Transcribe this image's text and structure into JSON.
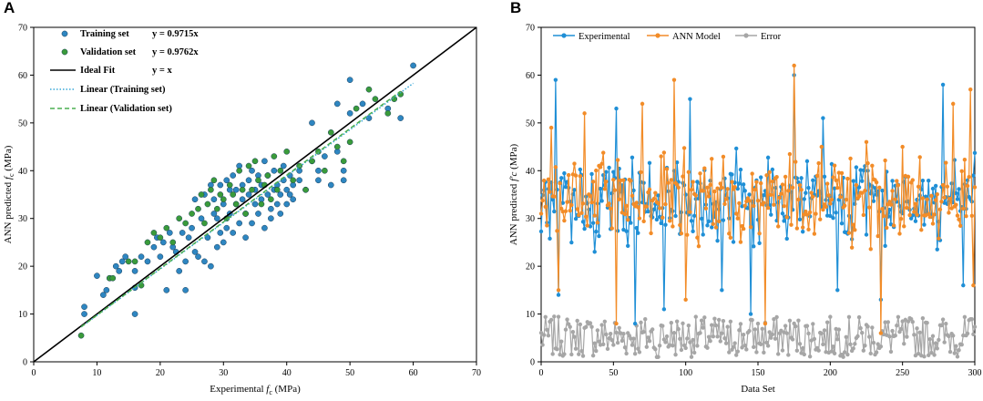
{
  "chart_data": [
    {
      "type": "scatter",
      "panel_label": "A",
      "xlabel_prefix": "Experimental ",
      "xlabel_var": "f",
      "xlabel_sub": "c",
      "xlabel_suffix": " (MPa)",
      "ylabel_prefix": "ANN predicted ",
      "ylabel_var": "f",
      "ylabel_sub": "c",
      "ylabel_suffix": " (MPa)",
      "xlim": [
        0,
        70
      ],
      "ylim": [
        0,
        70
      ],
      "xticks": [
        0,
        10,
        20,
        30,
        40,
        50,
        60,
        70
      ],
      "yticks": [
        0,
        10,
        20,
        30,
        40,
        50,
        60,
        70
      ],
      "legend_position": "top-left",
      "colors": {
        "training": "#2e86c1",
        "validation": "#3a9b3a",
        "ideal": "#000000",
        "train_fit": "#3aa8d8",
        "val_fit": "#4caf50"
      },
      "legend": [
        {
          "label": "Training set",
          "equation": "y = 0.9715x"
        },
        {
          "label": "Validation set",
          "equation": "y = 0.9762x"
        },
        {
          "label": "Ideal Fit",
          "equation": "y = x"
        },
        {
          "label": "Linear (Training set)"
        },
        {
          "label": "Linear (Validation set)"
        }
      ],
      "lines": {
        "ideal": {
          "slope": 1.0,
          "x": [
            0,
            70
          ]
        },
        "training_fit": {
          "slope": 0.9715,
          "x": [
            7.5,
            60
          ]
        },
        "validation_fit": {
          "slope": 0.9762,
          "x": [
            7.5,
            58
          ]
        }
      },
      "series": [
        {
          "name": "Training set",
          "points": [
            [
              8,
              10
            ],
            [
              8,
              11.5
            ],
            [
              10,
              18
            ],
            [
              11,
              14
            ],
            [
              11.5,
              15
            ],
            [
              12,
              17.5
            ],
            [
              13,
              20
            ],
            [
              13.5,
              19
            ],
            [
              14,
              21
            ],
            [
              14.5,
              22
            ],
            [
              16,
              10
            ],
            [
              16,
              15.5
            ],
            [
              16,
              19
            ],
            [
              17,
              22
            ],
            [
              18,
              21
            ],
            [
              19,
              24
            ],
            [
              19.5,
              26
            ],
            [
              20,
              22
            ],
            [
              20.5,
              25
            ],
            [
              21,
              15
            ],
            [
              21.5,
              27
            ],
            [
              22,
              24
            ],
            [
              22.5,
              23
            ],
            [
              23,
              19
            ],
            [
              23.5,
              27
            ],
            [
              24,
              15
            ],
            [
              24,
              21
            ],
            [
              24.5,
              26
            ],
            [
              25,
              28
            ],
            [
              25.5,
              23
            ],
            [
              25.5,
              34
            ],
            [
              26,
              22
            ],
            [
              26.5,
              30
            ],
            [
              27,
              21
            ],
            [
              27,
              35
            ],
            [
              27.5,
              26
            ],
            [
              28,
              37
            ],
            [
              28,
              20
            ],
            [
              28.5,
              31
            ],
            [
              28.5,
              34
            ],
            [
              29,
              24
            ],
            [
              29,
              30
            ],
            [
              29.5,
              27
            ],
            [
              29.5,
              37
            ],
            [
              30,
              25
            ],
            [
              30,
              33
            ],
            [
              30.5,
              28
            ],
            [
              30.5,
              38
            ],
            [
              31,
              31
            ],
            [
              31,
              36
            ],
            [
              31.5,
              27
            ],
            [
              31.5,
              39
            ],
            [
              32,
              33
            ],
            [
              32,
              36
            ],
            [
              32.5,
              41
            ],
            [
              32.5,
              29
            ],
            [
              33,
              34
            ],
            [
              33,
              37
            ],
            [
              33.5,
              26
            ],
            [
              33.5,
              31
            ],
            [
              34,
              35
            ],
            [
              34,
              38
            ],
            [
              34.5,
              40
            ],
            [
              34.5,
              29
            ],
            [
              35,
              33
            ],
            [
              35,
              36
            ],
            [
              35.5,
              39
            ],
            [
              35.5,
              31
            ],
            [
              36,
              34
            ],
            [
              36,
              37
            ],
            [
              36.5,
              42
            ],
            [
              36.5,
              28
            ],
            [
              37,
              35
            ],
            [
              37,
              39
            ],
            [
              37.5,
              32
            ],
            [
              37.5,
              30
            ],
            [
              38,
              36
            ],
            [
              38,
              40
            ],
            [
              38.5,
              33
            ],
            [
              38.5,
              37
            ],
            [
              39,
              31
            ],
            [
              39,
              35
            ],
            [
              39.5,
              38
            ],
            [
              39.5,
              41
            ],
            [
              40,
              33
            ],
            [
              40,
              36
            ],
            [
              40.5,
              39
            ],
            [
              40.5,
              35
            ],
            [
              41,
              37
            ],
            [
              41,
              34
            ],
            [
              42,
              40
            ],
            [
              42,
              38
            ],
            [
              43,
              36
            ],
            [
              44,
              50
            ],
            [
              44,
              42
            ],
            [
              45,
              38
            ],
            [
              45,
              40
            ],
            [
              46,
              43
            ],
            [
              47,
              37
            ],
            [
              48,
              54
            ],
            [
              48,
              44
            ],
            [
              49,
              38
            ],
            [
              49,
              40
            ],
            [
              50,
              59
            ],
            [
              50,
              52
            ],
            [
              52,
              54
            ],
            [
              53,
              51
            ],
            [
              56,
              53
            ],
            [
              58,
              51
            ],
            [
              60,
              62
            ]
          ]
        },
        {
          "name": "Validation set",
          "points": [
            [
              7.5,
              5.5
            ],
            [
              12,
              17.5
            ],
            [
              12.5,
              17.5
            ],
            [
              15,
              21
            ],
            [
              16,
              21
            ],
            [
              17,
              16
            ],
            [
              18,
              25
            ],
            [
              19,
              27
            ],
            [
              20,
              26
            ],
            [
              21,
              28
            ],
            [
              22,
              25
            ],
            [
              23,
              30
            ],
            [
              24,
              29
            ],
            [
              25,
              31
            ],
            [
              26,
              32
            ],
            [
              26.5,
              35
            ],
            [
              27,
              29
            ],
            [
              27.5,
              33
            ],
            [
              28,
              36
            ],
            [
              28.5,
              38
            ],
            [
              29,
              32
            ],
            [
              29.5,
              35
            ],
            [
              30,
              34
            ],
            [
              30.5,
              30
            ],
            [
              31,
              37
            ],
            [
              31.5,
              35
            ],
            [
              32,
              33
            ],
            [
              32.5,
              40
            ],
            [
              33,
              36
            ],
            [
              33.5,
              31
            ],
            [
              34,
              41
            ],
            [
              34.5,
              36
            ],
            [
              35,
              42
            ],
            [
              35.5,
              38
            ],
            [
              36,
              33
            ],
            [
              36.5,
              37
            ],
            [
              37,
              39
            ],
            [
              37.5,
              34
            ],
            [
              38,
              43
            ],
            [
              38.5,
              36
            ],
            [
              39,
              40
            ],
            [
              40,
              44
            ],
            [
              41,
              38
            ],
            [
              42,
              41
            ],
            [
              43,
              36
            ],
            [
              44,
              42
            ],
            [
              45,
              44
            ],
            [
              46,
              40
            ],
            [
              47,
              48
            ],
            [
              48,
              45
            ],
            [
              49,
              42
            ],
            [
              50,
              46
            ],
            [
              51,
              53
            ],
            [
              53,
              57
            ],
            [
              54,
              55
            ],
            [
              56,
              52
            ],
            [
              57,
              55
            ],
            [
              58,
              56
            ]
          ]
        }
      ]
    },
    {
      "type": "line",
      "panel_label": "B",
      "xlabel": "Data Set",
      "ylabel_prefix": "ANN predicted ",
      "ylabel_var": "f'c",
      "ylabel_suffix": " (MPa)",
      "xlim": [
        0,
        300
      ],
      "ylim": [
        0,
        70
      ],
      "xticks": [
        0,
        50,
        100,
        150,
        200,
        250,
        300
      ],
      "yticks": [
        0,
        10,
        20,
        30,
        40,
        50,
        60,
        70
      ],
      "legend_position": "top",
      "n_points": 301,
      "seed": 7,
      "colors": {
        "experimental": "#1f8fd6",
        "ann": "#f28c28",
        "error": "#a6a6a6"
      },
      "series": [
        {
          "name": "Experimental",
          "mean": 34,
          "spread": 8,
          "anchors": [
            [
              10,
              59
            ],
            [
              12,
              14
            ],
            [
              52,
              53
            ],
            [
              65,
              8
            ],
            [
              85,
              11
            ],
            [
              103,
              55
            ],
            [
              125,
              15
            ],
            [
              145,
              10
            ],
            [
              175,
              60
            ],
            [
              195,
              51
            ],
            [
              205,
              15
            ],
            [
              235,
              13
            ],
            [
              278,
              58
            ],
            [
              292,
              16
            ]
          ]
        },
        {
          "name": "ANN Model",
          "mean": 34,
          "spread": 8,
          "anchors": [
            [
              7,
              49
            ],
            [
              12,
              15
            ],
            [
              30,
              52
            ],
            [
              52,
              8
            ],
            [
              70,
              54
            ],
            [
              92,
              59
            ],
            [
              100,
              13
            ],
            [
              155,
              8
            ],
            [
              175,
              62
            ],
            [
              194,
              45
            ],
            [
              225,
              46
            ],
            [
              235,
              6
            ],
            [
              250,
              45
            ],
            [
              285,
              54
            ],
            [
              297,
              57
            ],
            [
              299,
              16
            ]
          ]
        },
        {
          "name": "Error",
          "mean": 4,
          "spread": 3,
          "anchors": [
            [
              80,
              1
            ],
            [
              130,
              2
            ],
            [
              230,
              4
            ]
          ]
        }
      ]
    }
  ]
}
